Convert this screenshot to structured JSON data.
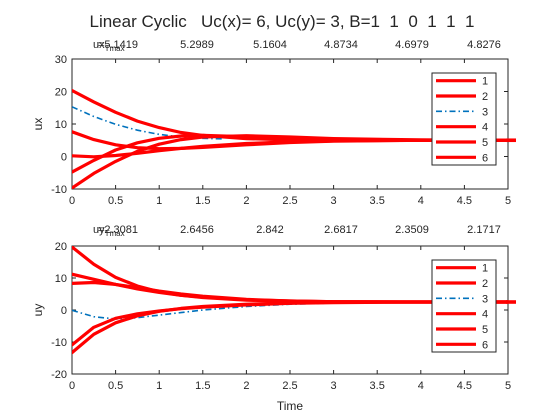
{
  "chart_data": [
    {
      "type": "line",
      "title": "Linear Cyclic   Uc(x)= 6, Uc(y)= 3, B=1  1  0  1  1  1",
      "annotation": {
        "label_main": "ux",
        "label_sub": "Tmax",
        "values": [
          "=5.1419",
          "5.2989",
          "5.1604",
          "4.8734",
          "4.6979",
          "4.8276"
        ]
      },
      "xlabel": "",
      "ylabel": "ux",
      "xlim": [
        0,
        5
      ],
      "ylim": [
        -10,
        30
      ],
      "xticks": [
        "0",
        "0.5",
        "1",
        "1.5",
        "2",
        "2.5",
        "3",
        "3.5",
        "4",
        "4.5",
        "5"
      ],
      "yticks": [
        "-10",
        "0",
        "10",
        "20",
        "30"
      ],
      "grid": false,
      "legend_position": "top-right",
      "series": [
        {
          "name": "1",
          "color": "#ff0000",
          "style": "solid",
          "x": [
            0,
            0.25,
            0.5,
            0.75,
            1,
            1.25,
            1.5,
            2,
            2.5,
            3,
            4,
            5
          ],
          "y": [
            20.3,
            16.8,
            13.6,
            10.9,
            8.9,
            7.4,
            6.5,
            5.5,
            5.1,
            5.0,
            5.0,
            5.0
          ]
        },
        {
          "name": "2",
          "color": "#ff0000",
          "style": "solid",
          "x": [
            0,
            0.25,
            0.5,
            0.75,
            1,
            1.25,
            1.5,
            2,
            2.5,
            3,
            4,
            5
          ],
          "y": [
            7.6,
            5.2,
            3.6,
            2.7,
            2.4,
            2.5,
            2.8,
            3.6,
            4.3,
            4.7,
            5.0,
            5.0
          ]
        },
        {
          "name": "3",
          "color": "#0072bd",
          "style": "dashdot",
          "x": [
            0,
            0.25,
            0.5,
            0.75,
            1,
            1.25,
            1.5,
            1.75
          ],
          "y": [
            15.3,
            12.3,
            9.9,
            8.1,
            6.8,
            6.0,
            5.6,
            5.4
          ]
        },
        {
          "name": "4",
          "color": "#ff0000",
          "style": "solid",
          "x": [
            0,
            0.25,
            0.5,
            0.75,
            1,
            1.25,
            1.5,
            2,
            2.5,
            3,
            4,
            5
          ],
          "y": [
            0.2,
            -0.1,
            0.3,
            1.0,
            1.8,
            2.5,
            3.1,
            4.0,
            4.5,
            4.8,
            5.0,
            5.0
          ]
        },
        {
          "name": "5",
          "color": "#ff0000",
          "style": "solid",
          "x": [
            0,
            0.25,
            0.5,
            0.75,
            1,
            1.25,
            1.5,
            2,
            2.5,
            3,
            4,
            5
          ],
          "y": [
            -4.8,
            -1.2,
            2.0,
            4.2,
            5.6,
            6.3,
            6.5,
            6.1,
            5.6,
            5.3,
            5.0,
            5.0
          ]
        },
        {
          "name": "6",
          "color": "#ff0000",
          "style": "solid",
          "x": [
            0,
            0.25,
            0.5,
            0.75,
            1,
            1.25,
            1.5,
            2,
            2.5,
            3,
            4,
            5
          ],
          "y": [
            -9.7,
            -5.2,
            -1.5,
            1.6,
            3.8,
            5.2,
            6.0,
            6.4,
            6.0,
            5.5,
            5.1,
            5.0
          ]
        }
      ]
    },
    {
      "type": "line",
      "title": "",
      "annotation": {
        "label_main": "uy",
        "label_sub": "Tmax",
        "values": [
          "=2.3081",
          "2.6456",
          "2.842",
          "2.6817",
          "2.3509",
          "2.1717"
        ]
      },
      "xlabel": "Time",
      "ylabel": "uy",
      "xlim": [
        0,
        5
      ],
      "ylim": [
        -20,
        20
      ],
      "xticks": [
        "0",
        "0.5",
        "1",
        "1.5",
        "2",
        "2.5",
        "3",
        "3.5",
        "4",
        "4.5",
        "5"
      ],
      "yticks": [
        "-20",
        "-10",
        "0",
        "10",
        "20"
      ],
      "grid": false,
      "legend_position": "top-right",
      "series": [
        {
          "name": "1",
          "color": "#ff0000",
          "style": "solid",
          "x": [
            0,
            0.25,
            0.5,
            0.75,
            1,
            1.25,
            1.5,
            2,
            2.5,
            3,
            4,
            5
          ],
          "y": [
            19.7,
            14.3,
            10.2,
            7.5,
            5.7,
            4.6,
            3.9,
            3.1,
            2.7,
            2.6,
            2.5,
            2.5
          ]
        },
        {
          "name": "2",
          "color": "#ff0000",
          "style": "solid",
          "x": [
            0,
            0.25,
            0.5,
            0.75,
            1,
            1.25,
            1.5,
            2,
            2.5,
            3,
            4,
            5
          ],
          "y": [
            11.2,
            9.6,
            8.0,
            6.6,
            5.5,
            4.6,
            4.0,
            3.2,
            2.8,
            2.6,
            2.5,
            2.5
          ]
        },
        {
          "name": "3",
          "color": "#0072bd",
          "style": "dashdot",
          "x": [
            0,
            0.25,
            0.5,
            0.75,
            1,
            1.25,
            1.5,
            2,
            2.5,
            3,
            4,
            5
          ],
          "y": [
            -0.1,
            -2.1,
            -2.8,
            -2.4,
            -1.6,
            -0.8,
            0.0,
            1.1,
            1.8,
            2.2,
            2.4,
            2.5
          ]
        },
        {
          "name": "4",
          "color": "#ff0000",
          "style": "solid",
          "x": [
            0,
            0.25,
            0.5,
            0.75,
            1,
            1.25,
            1.5,
            2,
            2.5,
            3,
            4,
            5
          ],
          "y": [
            8.3,
            8.6,
            8.0,
            7.0,
            5.9,
            5.0,
            4.3,
            3.3,
            2.8,
            2.6,
            2.5,
            2.5
          ]
        },
        {
          "name": "5",
          "color": "#ff0000",
          "style": "solid",
          "x": [
            0,
            0.25,
            0.5,
            0.75,
            1,
            1.25,
            1.5,
            2,
            2.5,
            3,
            4,
            5
          ],
          "y": [
            -10.9,
            -5.4,
            -2.6,
            -1.2,
            -0.3,
            0.4,
            0.9,
            1.6,
            2.1,
            2.3,
            2.5,
            2.5
          ]
        },
        {
          "name": "6",
          "color": "#ff0000",
          "style": "solid",
          "x": [
            0,
            0.25,
            0.5,
            0.75,
            1,
            1.25,
            1.5,
            2,
            2.5,
            3,
            4,
            5
          ],
          "y": [
            -13.3,
            -7.6,
            -4.0,
            -1.8,
            -0.4,
            0.5,
            1.1,
            1.8,
            2.2,
            2.4,
            2.5,
            2.5
          ]
        }
      ]
    }
  ]
}
